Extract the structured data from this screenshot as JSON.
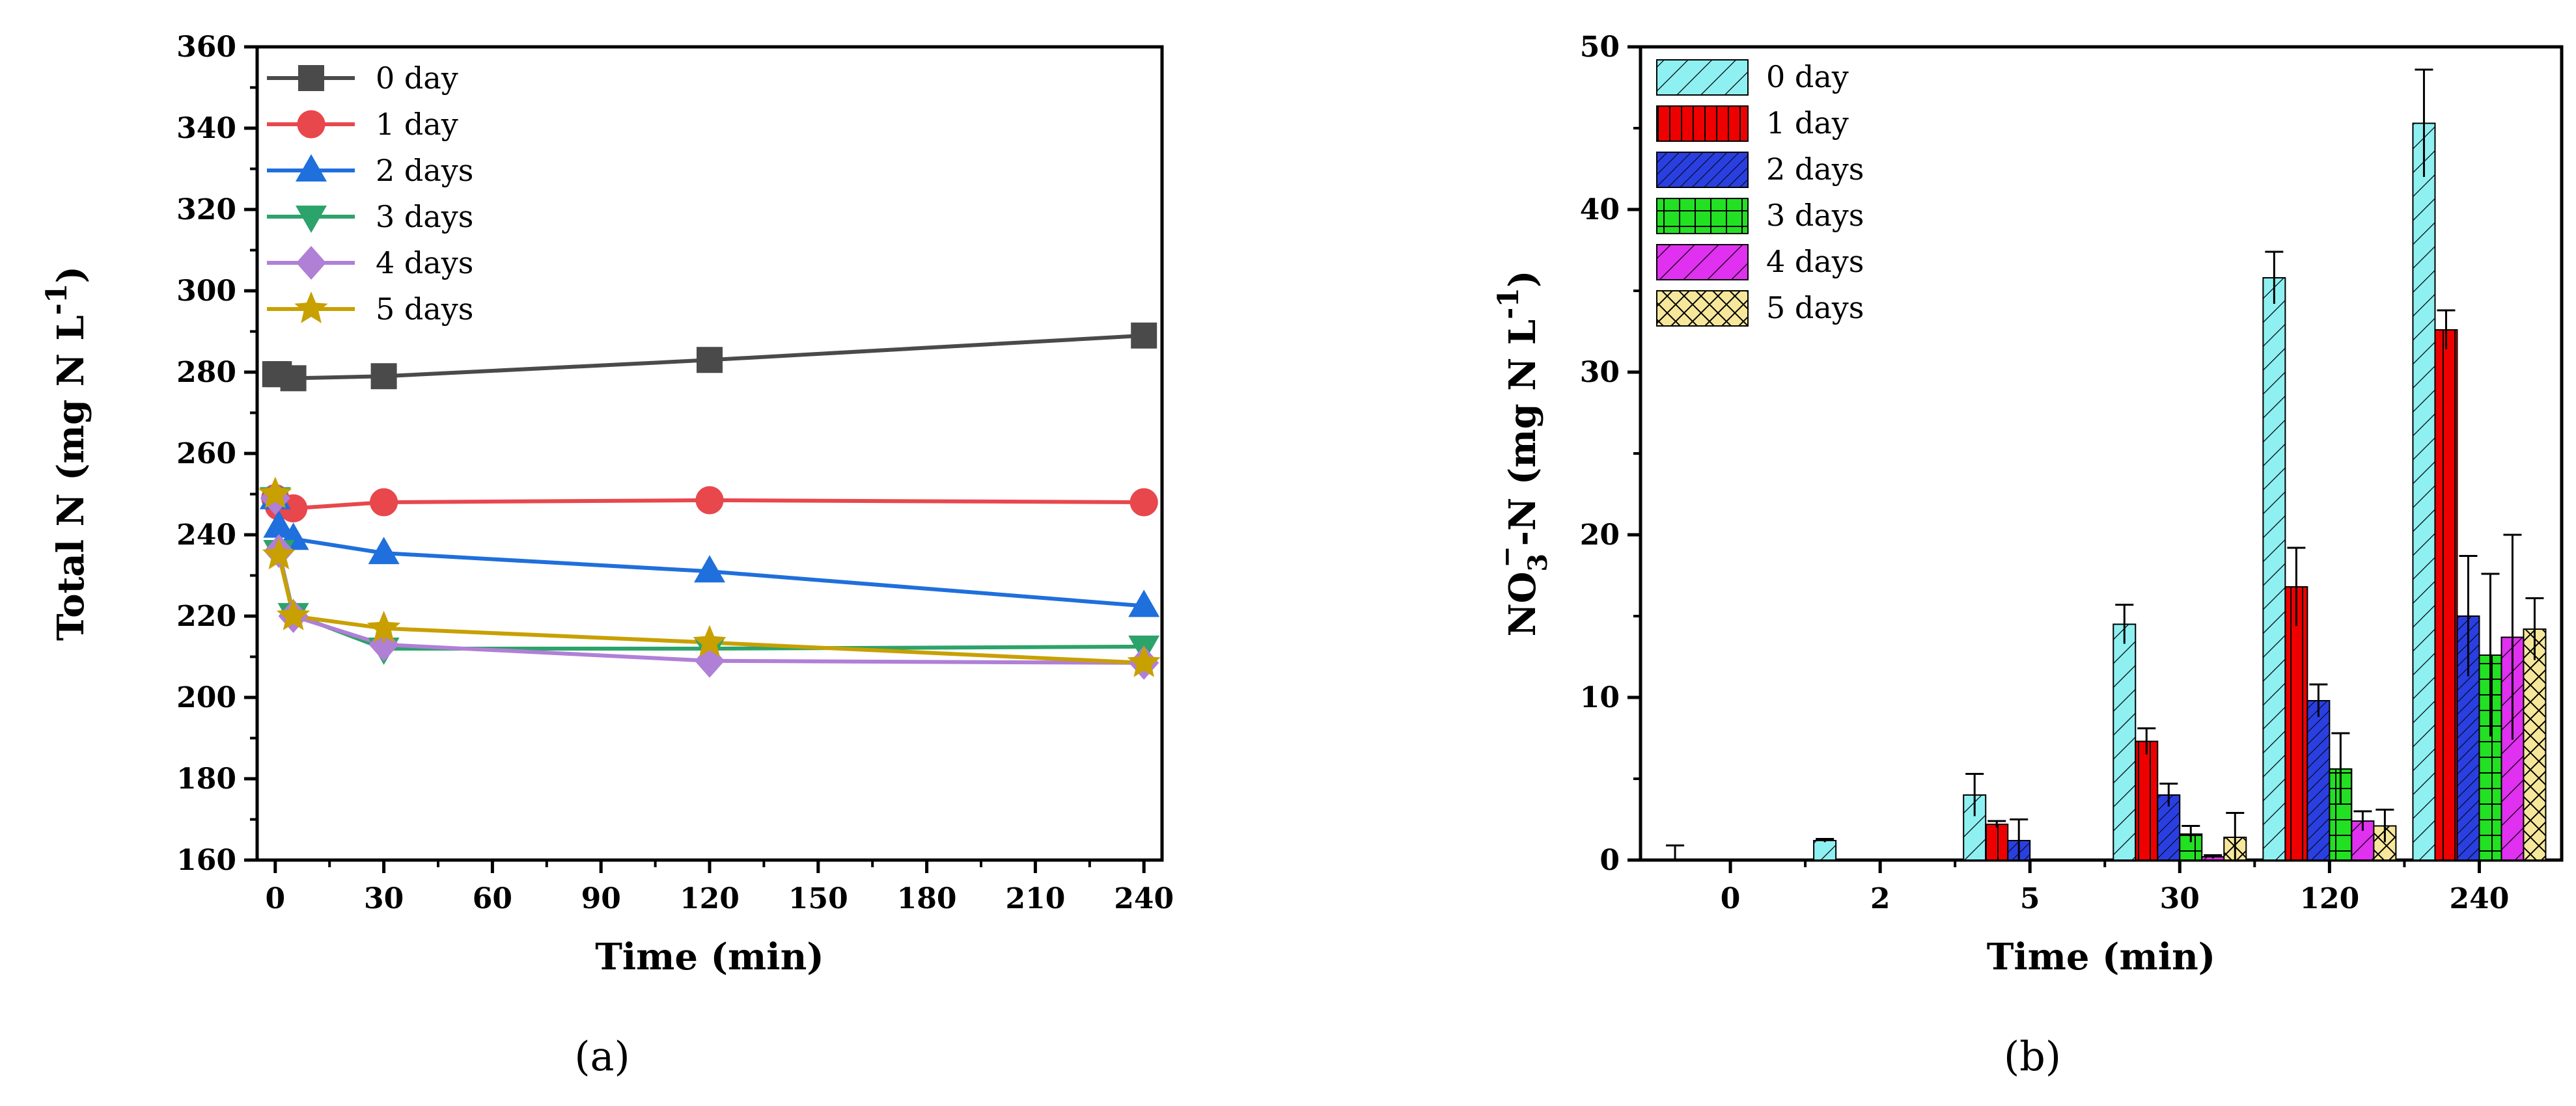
{
  "panel_labels": [
    "(a)",
    "(b)"
  ],
  "chart_data": [
    {
      "type": "line",
      "panel": "(a)",
      "xlabel": "Time (min)",
      "ylabel": "Total N (mg N L",
      "ylabel_sup": "-1",
      "ylabel_close": ")",
      "xlim": [
        -5,
        245
      ],
      "ylim": [
        160,
        360
      ],
      "xticks": [
        0,
        30,
        60,
        90,
        120,
        150,
        180,
        210,
        240
      ],
      "yticks": [
        160,
        180,
        200,
        220,
        240,
        260,
        280,
        300,
        320,
        340,
        360
      ],
      "legend_position": "top-left",
      "series": [
        {
          "name": "0 day",
          "color": "#4a4a4a",
          "marker": "square",
          "x": [
            0,
            1,
            5,
            30,
            120,
            240
          ],
          "y": [
            279.5,
            279.5,
            278.5,
            279,
            283,
            289
          ]
        },
        {
          "name": "1 day",
          "color": "#e8474c",
          "marker": "circle",
          "x": [
            0,
            1,
            5,
            30,
            120,
            240
          ],
          "y": [
            249,
            247,
            246.5,
            248,
            248.5,
            248
          ]
        },
        {
          "name": "2 days",
          "color": "#1f6fdc",
          "marker": "triangle-up",
          "x": [
            0,
            1,
            5,
            30,
            120,
            240
          ],
          "y": [
            249,
            242,
            239,
            235.5,
            231,
            222.5
          ]
        },
        {
          "name": "3 days",
          "color": "#2ca36a",
          "marker": "triangle-down",
          "x": [
            0,
            1,
            5,
            30,
            120,
            240
          ],
          "y": [
            249,
            236,
            220.5,
            212,
            212,
            212.5
          ]
        },
        {
          "name": "4 days",
          "color": "#b07fd6",
          "marker": "diamond",
          "x": [
            0,
            1,
            5,
            30,
            120,
            240
          ],
          "y": [
            249,
            236,
            220,
            213,
            209,
            208.5
          ]
        },
        {
          "name": "5 days",
          "color": "#c8a000",
          "marker": "star",
          "x": [
            0,
            1,
            5,
            30,
            120,
            240
          ],
          "y": [
            250,
            235,
            220,
            217,
            213.5,
            208.5
          ]
        }
      ]
    },
    {
      "type": "bar",
      "panel": "(b)",
      "xlabel": "Time (min)",
      "ylabel_prefix": "NO",
      "ylabel_sub": "3",
      "ylabel_sup": "−",
      "ylabel_mid": "-N (mg N L",
      "ylabel_sup2": "-1",
      "ylabel_close": ")",
      "ylim": [
        0,
        50
      ],
      "yticks": [
        0,
        10,
        20,
        30,
        40,
        50
      ],
      "categories": [
        "0",
        "2",
        "5",
        "30",
        "120",
        "240"
      ],
      "legend_position": "top-left",
      "series": [
        {
          "name": "0 day",
          "color": "#8ff0f2",
          "pattern": "diag-wide",
          "values": [
            0,
            1.2,
            4.0,
            14.5,
            35.8,
            45.3
          ],
          "errors": [
            0.9,
            0.1,
            1.3,
            1.2,
            1.6,
            3.3
          ]
        },
        {
          "name": "1 day",
          "color": "#ee0000",
          "pattern": "vertical",
          "values": [
            0,
            0,
            2.2,
            7.3,
            16.8,
            32.6
          ],
          "errors": [
            0,
            0,
            0.2,
            0.8,
            2.4,
            1.2
          ]
        },
        {
          "name": "2 days",
          "color": "#2a3fe0",
          "pattern": "diag-dense",
          "values": [
            0,
            0,
            1.2,
            4.0,
            9.8,
            15.0
          ],
          "errors": [
            0,
            0,
            1.3,
            0.7,
            1.0,
            3.7
          ]
        },
        {
          "name": "3 days",
          "color": "#22e022",
          "pattern": "grid",
          "values": [
            0,
            0,
            0,
            1.6,
            5.6,
            12.6
          ],
          "errors": [
            0,
            0,
            0,
            0.5,
            2.2,
            5.0
          ]
        },
        {
          "name": "4 days",
          "color": "#e030f0",
          "pattern": "diag-wide",
          "values": [
            0,
            0,
            0,
            0.2,
            2.4,
            13.7
          ],
          "errors": [
            0,
            0,
            0,
            0.1,
            0.6,
            6.3
          ]
        },
        {
          "name": "5 days",
          "color": "#f6e79a",
          "pattern": "crosshatch",
          "values": [
            0,
            0,
            0,
            1.4,
            2.1,
            14.2
          ],
          "errors": [
            0,
            0,
            0,
            1.5,
            1.0,
            1.9
          ]
        }
      ]
    }
  ]
}
